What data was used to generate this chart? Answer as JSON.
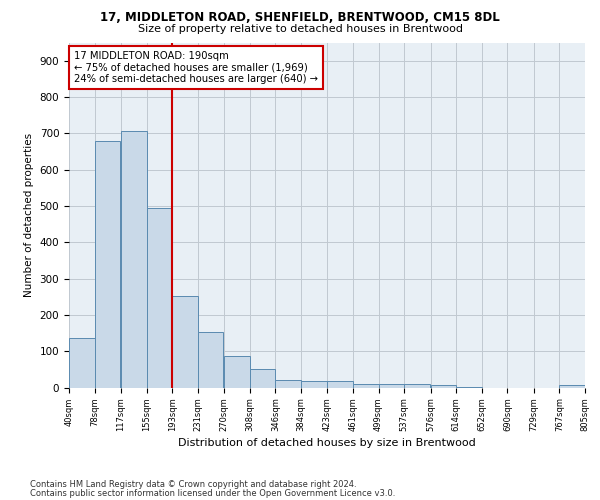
{
  "title1": "17, MIDDLETON ROAD, SHENFIELD, BRENTWOOD, CM15 8DL",
  "title2": "Size of property relative to detached houses in Brentwood",
  "xlabel": "Distribution of detached houses by size in Brentwood",
  "ylabel": "Number of detached properties",
  "bar_left_edges": [
    40,
    78,
    117,
    155,
    193,
    231,
    270,
    308,
    346,
    384,
    423,
    461,
    499,
    537,
    576,
    614,
    652,
    690,
    729,
    767
  ],
  "bar_heights": [
    135,
    678,
    707,
    493,
    252,
    153,
    88,
    50,
    22,
    18,
    17,
    10,
    10,
    10,
    7,
    2,
    0,
    0,
    0,
    8
  ],
  "bin_width": 38,
  "bar_color": "#c9d9e8",
  "bar_edge_color": "#5a8ab0",
  "property_size": 193,
  "vline_color": "#cc0000",
  "annotation_line1": "17 MIDDLETON ROAD: 190sqm",
  "annotation_line2": "← 75% of detached houses are smaller (1,969)",
  "annotation_line3": "24% of semi-detached houses are larger (640) →",
  "annotation_box_color": "#ffffff",
  "annotation_box_edge": "#cc0000",
  "tick_labels": [
    "40sqm",
    "78sqm",
    "117sqm",
    "155sqm",
    "193sqm",
    "231sqm",
    "270sqm",
    "308sqm",
    "346sqm",
    "384sqm",
    "423sqm",
    "461sqm",
    "499sqm",
    "537sqm",
    "576sqm",
    "614sqm",
    "652sqm",
    "690sqm",
    "729sqm",
    "767sqm",
    "805sqm"
  ],
  "yticks": [
    0,
    100,
    200,
    300,
    400,
    500,
    600,
    700,
    800,
    900
  ],
  "ylim": [
    0,
    950
  ],
  "xlim_left": 40,
  "xlim_right": 805,
  "grid_color": "#c0c8d0",
  "background_color": "#e8eff5",
  "footer1": "Contains HM Land Registry data © Crown copyright and database right 2024.",
  "footer2": "Contains public sector information licensed under the Open Government Licence v3.0."
}
